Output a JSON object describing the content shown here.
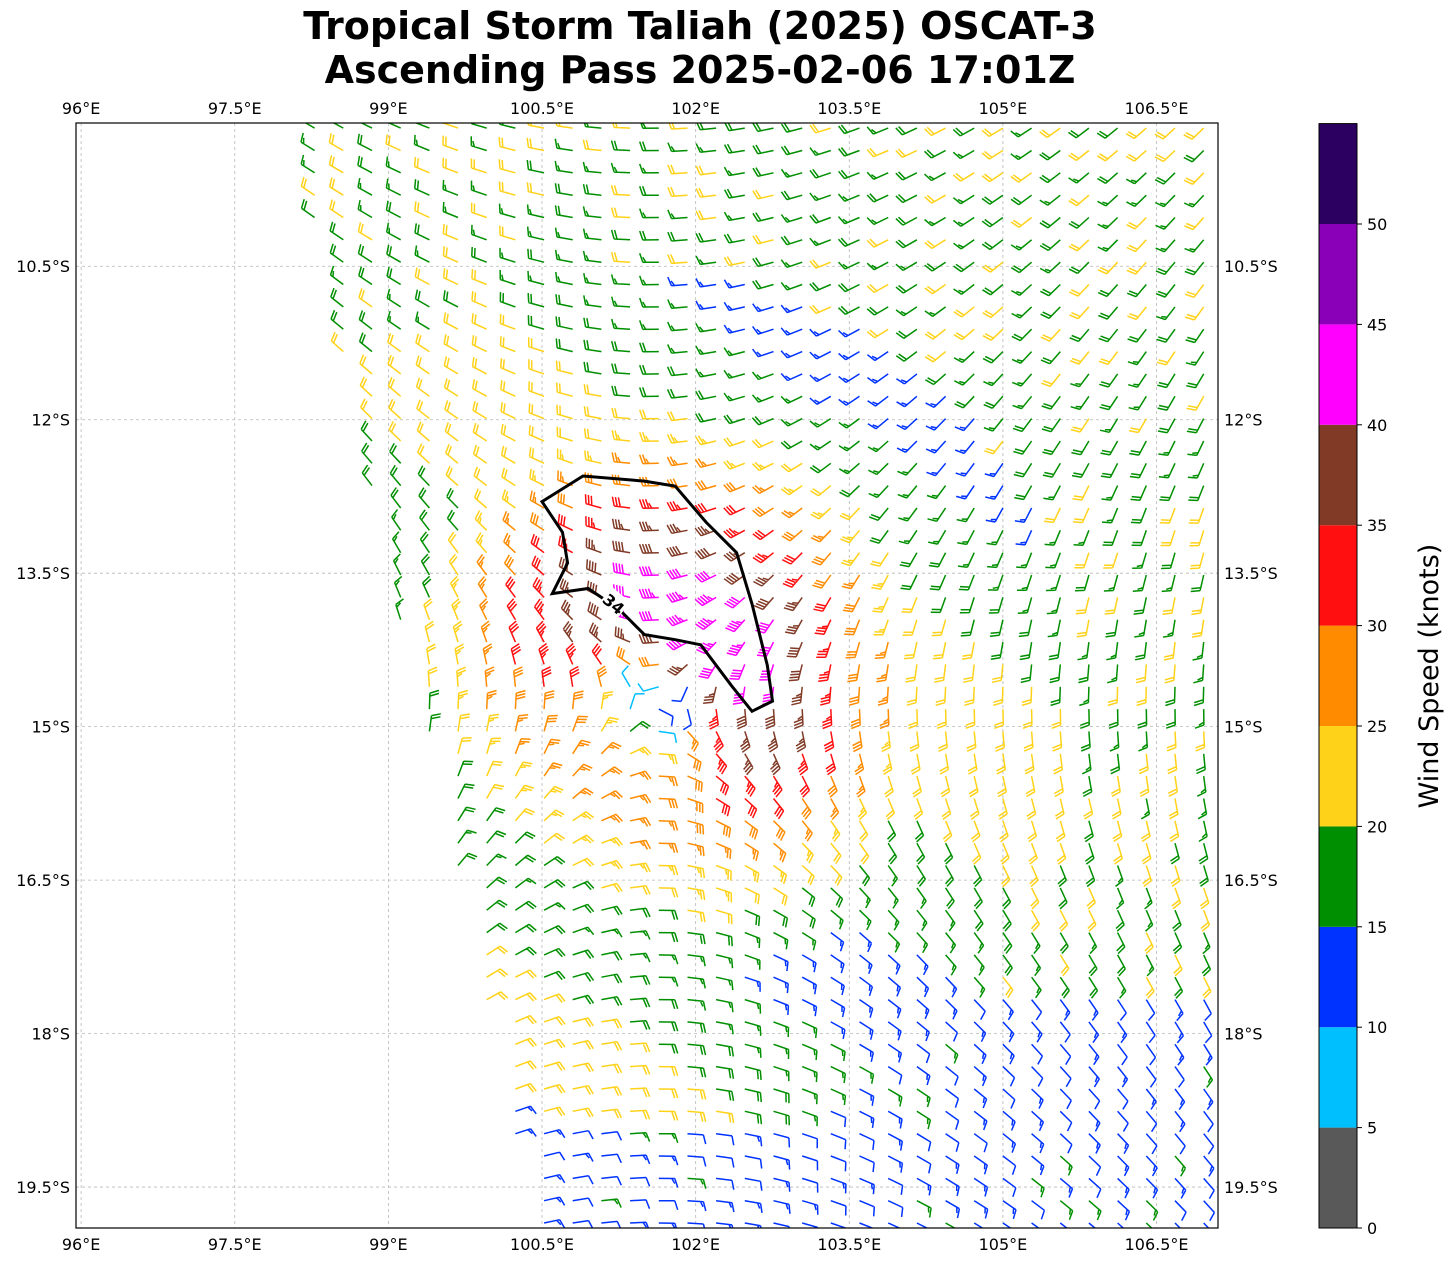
{
  "title": {
    "line1": "Tropical Storm Taliah (2025) OSCAT-3",
    "line2": "Ascending Pass 2025-02-06 17:01Z"
  },
  "map": {
    "lon_ticks": [
      "96°E",
      "97.5°E",
      "99°E",
      "100.5°E",
      "102°E",
      "103.5°E",
      "105°E",
      "106.5°E"
    ],
    "lat_ticks": [
      "10.5°S",
      "12°S",
      "13.5°S",
      "15°S",
      "16.5°S",
      "18°S",
      "19.5°S"
    ],
    "lon_range": [
      95.95,
      107.1
    ],
    "lat_range": [
      -9.1,
      -19.9
    ],
    "gridlines": true,
    "storm_center": {
      "lon": 101.6,
      "lat": -14.75
    },
    "contour_label": "34",
    "contour_level_knots": 34
  },
  "colorbar": {
    "label": "Wind Speed (knots)",
    "tick_labels": [
      "0",
      "5",
      "10",
      "15",
      "20",
      "25",
      "30",
      "35",
      "40",
      "45",
      "50"
    ],
    "bins": [
      {
        "min": 0,
        "max": 5,
        "color": "#595959"
      },
      {
        "min": 5,
        "max": 10,
        "color": "#00bfff"
      },
      {
        "min": 10,
        "max": 15,
        "color": "#0033ff"
      },
      {
        "min": 15,
        "max": 20,
        "color": "#008f00"
      },
      {
        "min": 20,
        "max": 25,
        "color": "#ffd21a"
      },
      {
        "min": 25,
        "max": 30,
        "color": "#ff8c00"
      },
      {
        "min": 30,
        "max": 35,
        "color": "#ff0f0f"
      },
      {
        "min": 35,
        "max": 40,
        "color": "#803a26"
      },
      {
        "min": 40,
        "max": 45,
        "color": "#ff00ff"
      },
      {
        "min": 45,
        "max": 50,
        "color": "#8a00b8"
      },
      {
        "min": 50,
        "max": 55,
        "color": "#2b0060"
      }
    ]
  }
}
